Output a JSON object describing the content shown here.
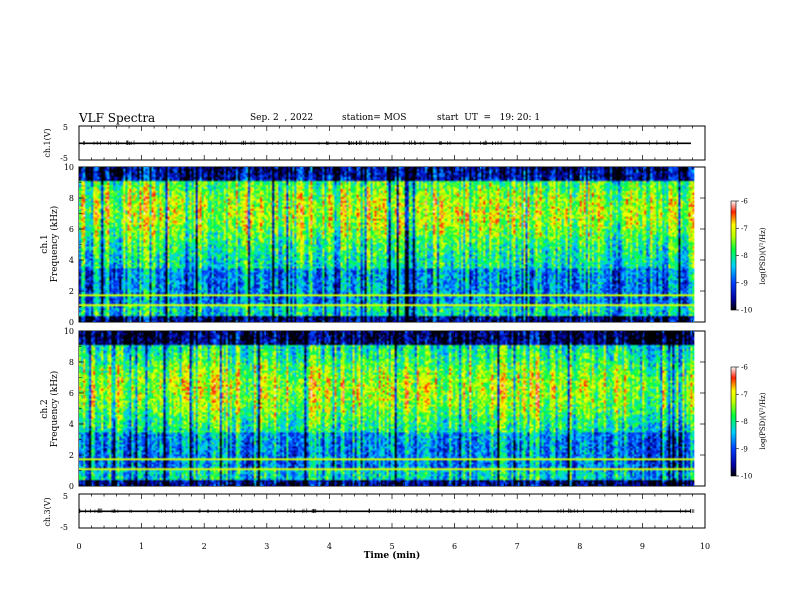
{
  "header": {
    "title": "VLF Spectra",
    "date": "Sep. 2  , 2022",
    "station": "station= MOS",
    "start": "start  UT  =   19: 20: 1"
  },
  "chart_data": [
    {
      "type": "line",
      "panel": "ch1-waveform",
      "ylabel": "ch.1(V)",
      "ylim": [
        -5,
        5
      ],
      "yticks": [
        "5",
        "-5"
      ],
      "xlim": [
        0,
        10
      ],
      "baseline": -0.1
    },
    {
      "type": "heatmap",
      "panel": "ch1-spectrogram",
      "ylabel": "ch.1\nFrequency (kHz)",
      "ylim": [
        0,
        10
      ],
      "yticks": [
        "0",
        "2",
        "4",
        "6",
        "8",
        "10"
      ],
      "xlim": [
        0,
        10
      ],
      "data_end_min": 9.83,
      "colorbar": {
        "label": "log(PSD)(V²/Hz)",
        "range": [
          -10,
          -6
        ],
        "ticks": [
          "-6",
          "-7",
          "-8",
          "-9",
          "-10"
        ]
      }
    },
    {
      "type": "heatmap",
      "panel": "ch2-spectrogram",
      "ylabel": "ch.2\nFrequency (kHz)",
      "ylim": [
        0,
        10
      ],
      "yticks": [
        "0",
        "2",
        "4",
        "6",
        "8",
        "10"
      ],
      "xlim": [
        0,
        10
      ],
      "data_end_min": 9.83,
      "colorbar": {
        "label": "log(PSD)(V²/Hz)",
        "range": [
          -10,
          -6
        ],
        "ticks": [
          "-6",
          "-7",
          "-8",
          "-9",
          "-10"
        ]
      }
    },
    {
      "type": "line",
      "panel": "ch3-waveform",
      "ylabel": "ch.3(V)",
      "ylim": [
        -5,
        5
      ],
      "yticks": [
        "5",
        "-5"
      ],
      "xlim": [
        0,
        10
      ],
      "baseline": -0.1
    }
  ],
  "xaxis": {
    "label": "Time  (min)",
    "ticks": [
      "0",
      "1",
      "2",
      "3",
      "4",
      "5",
      "6",
      "7",
      "8",
      "9",
      "10"
    ]
  },
  "colors": {
    "black": "#000000",
    "white": "#ffffff"
  }
}
